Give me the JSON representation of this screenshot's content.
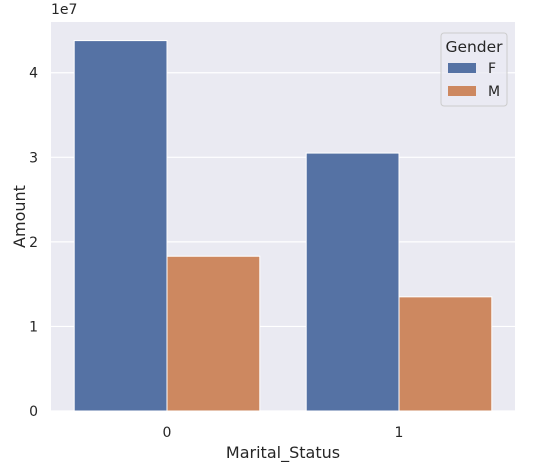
{
  "chart_data": {
    "type": "bar",
    "categories": [
      "0",
      "1"
    ],
    "series": [
      {
        "name": "F",
        "values": [
          43800000,
          30500000
        ],
        "color": "#5572a4"
      },
      {
        "name": "M",
        "values": [
          18300000,
          13500000
        ],
        "color": "#cd8860"
      }
    ],
    "xlabel": "Marital_Status",
    "ylabel": "Amount",
    "y_scale_label": "1e7",
    "y_ticks": [
      0,
      10000000,
      20000000,
      30000000,
      40000000
    ],
    "y_tick_labels": [
      "0",
      "1",
      "2",
      "3",
      "4"
    ],
    "ylim": [
      0,
      46000000
    ],
    "grid": true,
    "plot_background": "#eaeaf2",
    "grid_color": "#ffffff",
    "legend": {
      "title": "Gender",
      "placement": "top-right"
    }
  }
}
